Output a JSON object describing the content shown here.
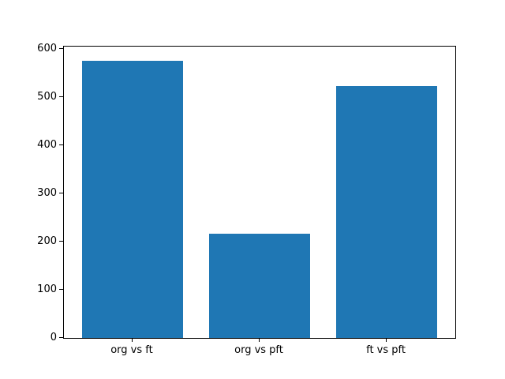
{
  "chart_data": {
    "type": "bar",
    "categories": [
      "org vs ft",
      "org vs pft",
      "ft vs pft"
    ],
    "values": [
      576,
      216,
      523
    ],
    "title": "",
    "xlabel": "",
    "ylabel": "",
    "ylim": [
      0,
      605
    ],
    "yticks": [
      0,
      100,
      200,
      300,
      400,
      500,
      600
    ],
    "grid": false,
    "legend": null,
    "bar_color": "#1f77b4",
    "axis_color": "#000000",
    "background_color": "#ffffff"
  }
}
